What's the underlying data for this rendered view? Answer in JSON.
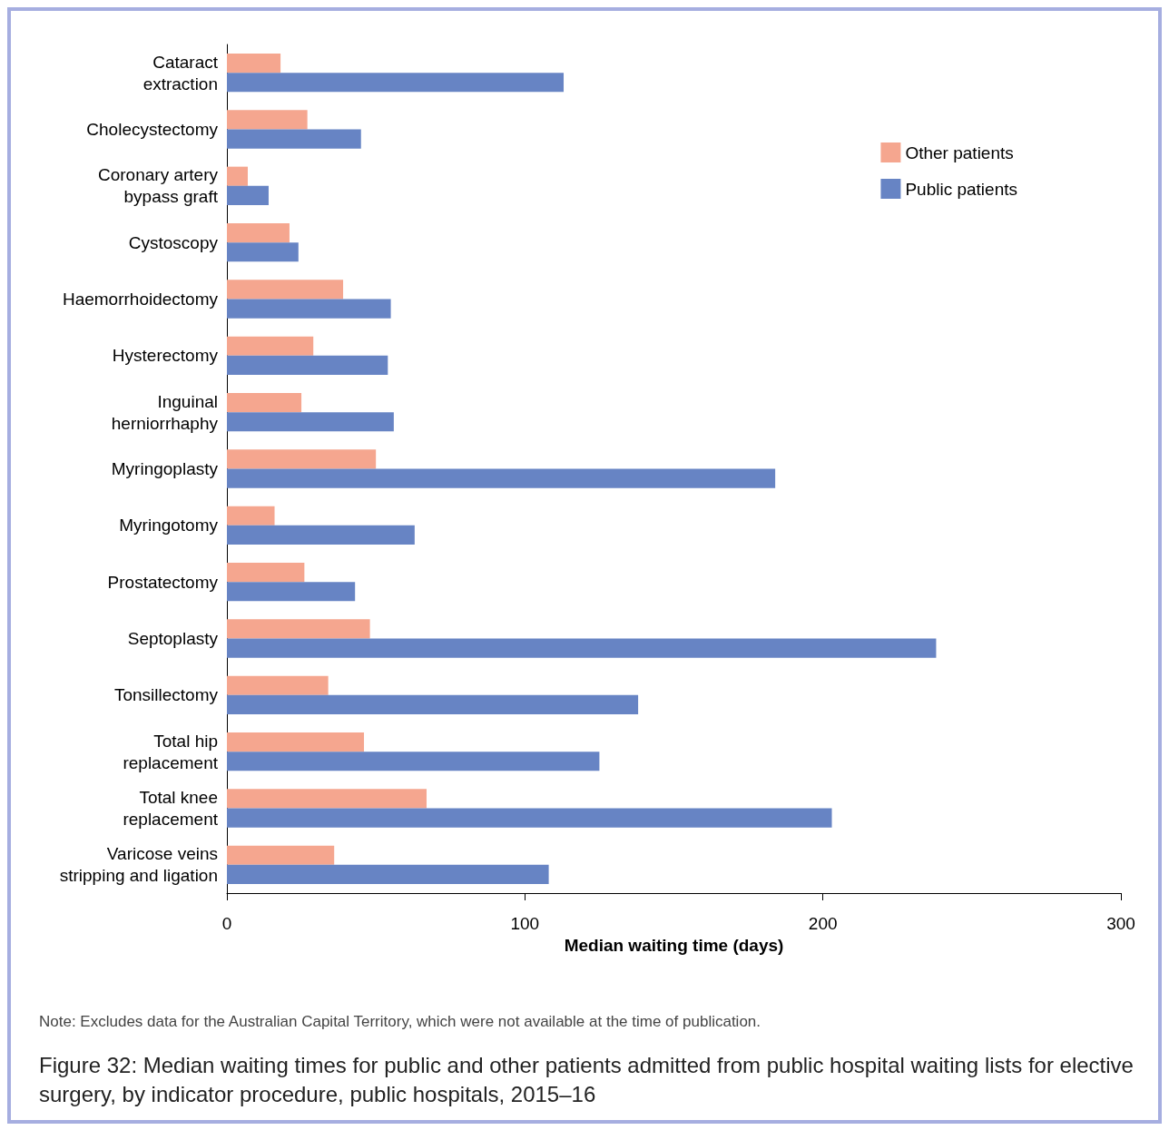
{
  "chart_data": {
    "type": "bar",
    "orientation": "horizontal",
    "title": "Figure 32: Median waiting times for public and other patients admitted from public hospital waiting lists for elective surgery, by indicator procedure, public hospitals, 2015–16",
    "xlabel": "Median waiting time (days)",
    "categories": [
      "Cataract\nextraction",
      "Cholecystectomy",
      "Coronary artery\nbypass graft",
      "Cystoscopy",
      "Haemorrhoidectomy",
      "Hysterectomy",
      "Inguinal\nherniorrhaphy",
      "Myringoplasty",
      "Myringotomy",
      "Prostatectomy",
      "Septoplasty",
      "Tonsillectomy",
      "Total hip\nreplacement",
      "Total knee\nreplacement",
      "Varicose veins\nstripping and ligation"
    ],
    "series": [
      {
        "name": "Other patients",
        "color": "#f5a68f",
        "values": [
          18,
          27,
          7,
          21,
          39,
          29,
          25,
          50,
          16,
          26,
          48,
          34,
          46,
          67,
          36
        ]
      },
      {
        "name": "Public patients",
        "color": "#6784c4",
        "values": [
          113,
          45,
          14,
          24,
          55,
          54,
          56,
          184,
          63,
          43,
          238,
          138,
          125,
          203,
          108
        ]
      }
    ],
    "xlim": [
      0,
      300
    ],
    "xticks": [
      0,
      100,
      200,
      300
    ],
    "grid": false,
    "legend": "top right",
    "annotations": [
      "Note: Excludes data for the Australian Capital Territory, which were not available at the time of publication."
    ]
  }
}
